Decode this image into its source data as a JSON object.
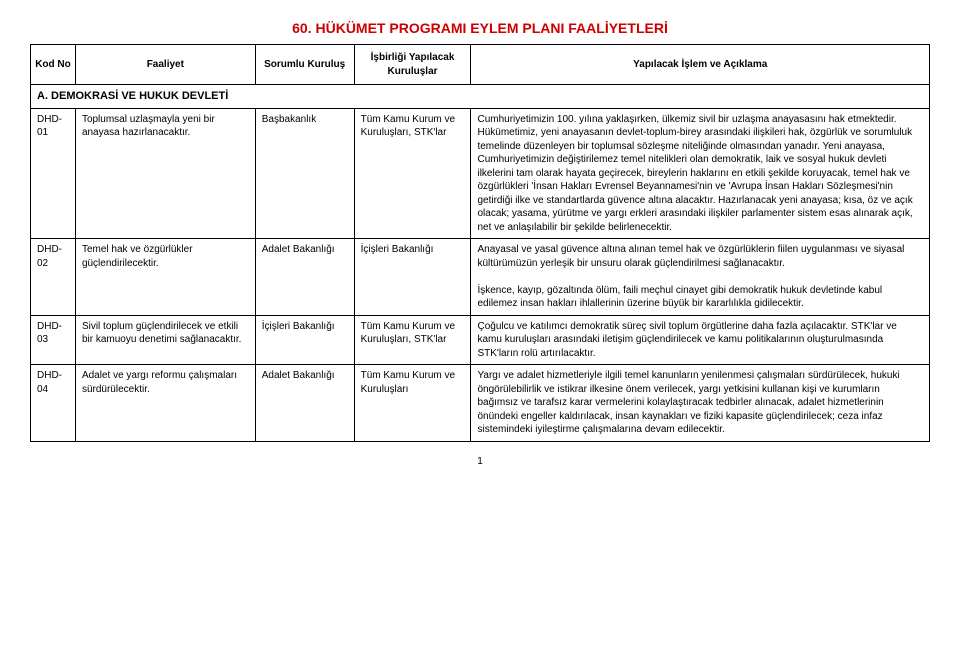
{
  "title": "60. HÜKÜMET PROGRAMI EYLEM PLANI FAALİYETLERİ",
  "headers": {
    "kod": "Kod No",
    "faaliyet": "Faaliyet",
    "sorumlu": "Sorumlu Kuruluş",
    "isbirligi": "İşbirliği Yapılacak Kuruluşlar",
    "aciklama": "Yapılacak İşlem ve Açıklama"
  },
  "section": "A. DEMOKRASİ VE HUKUK DEVLETİ",
  "rows": [
    {
      "kod": "DHD-01",
      "faaliyet": "Toplumsal uzlaşmayla yeni bir anayasa hazırlanacaktır.",
      "sorumlu": "Başbakanlık",
      "isbirligi": "Tüm Kamu Kurum ve Kuruluşları, STK'lar",
      "aciklama": "Cumhuriyetimizin 100. yılına yaklaşırken, ülkemiz sivil bir uzlaşma anayasasını hak etmektedir. Hükümetimiz, yeni anayasanın devlet-toplum-birey arasındaki ilişkileri hak, özgürlük ve sorumluluk temelinde düzenleyen bir toplumsal sözleşme niteliğinde olmasından yanadır. Yeni anayasa, Cumhuriyetimizin değiştirilemez temel nitelikleri olan demokratik, laik ve sosyal hukuk devleti ilkelerini tam olarak hayata geçirecek, bireylerin haklarını en etkili şekilde koruyacak, temel hak ve özgürlükleri 'İnsan Hakları Evrensel Beyannamesi'nin ve 'Avrupa İnsan Hakları Sözleşmesi'nin getirdiği ilke ve standartlarda güvence altına alacaktır. Hazırlanacak yeni anayasa; kısa, öz ve açık olacak; yasama, yürütme ve yargı erkleri arasındaki ilişkiler parlamenter sistem esas alınarak açık, net ve anlaşılabilir bir şekilde belirlenecektir."
    },
    {
      "kod": "DHD-02",
      "faaliyet": "Temel hak ve özgürlükler güçlendirilecektir.",
      "sorumlu": "Adalet Bakanlığı",
      "isbirligi": "İçişleri Bakanlığı",
      "aciklama": "Anayasal ve yasal güvence altına alınan temel hak ve özgürlüklerin fiilen uygulanması ve siyasal kültürümüzün yerleşik bir unsuru olarak güçlendirilmesi sağlanacaktır.\n\nİşkence, kayıp, gözaltında ölüm, faili meçhul cinayet gibi demokratik hukuk devletinde kabul edilemez insan hakları ihlallerinin üzerine büyük bir kararlılıkla gidilecektir."
    },
    {
      "kod": "DHD-03",
      "faaliyet": "Sivil toplum güçlendirilecek ve etkili bir kamuoyu denetimi sağlanacaktır.",
      "sorumlu": "İçişleri Bakanlığı",
      "isbirligi": "Tüm Kamu Kurum ve Kuruluşları, STK'lar",
      "aciklama": "Çoğulcu ve katılımcı demokratik süreç sivil toplum örgütlerine daha fazla açılacaktır. STK'lar ve kamu kuruluşları arasındaki iletişim güçlendirilecek ve kamu politikalarının oluşturulmasında STK'ların rolü artırılacaktır."
    },
    {
      "kod": "DHD-04",
      "faaliyet": "Adalet ve yargı reformu çalışmaları sürdürülecektir.",
      "sorumlu": "Adalet Bakanlığı",
      "isbirligi": "Tüm Kamu Kurum ve Kuruluşları",
      "aciklama": "Yargı ve adalet hizmetleriyle ilgili temel kanunların yenilenmesi çalışmaları sürdürülecek, hukuki öngörülebilirlik ve istikrar ilkesine önem verilecek, yargı yetkisini kullanan kişi ve kurumların bağımsız ve tarafsız karar vermelerini kolaylaştıracak tedbirler alınacak, adalet hizmetlerinin önündeki engeller kaldırılacak, insan kaynakları ve fiziki kapasite güçlendirilecek; ceza infaz sistemindeki iyileştirme çalışmalarına devam edilecektir."
    }
  ],
  "pageNumber": "1"
}
